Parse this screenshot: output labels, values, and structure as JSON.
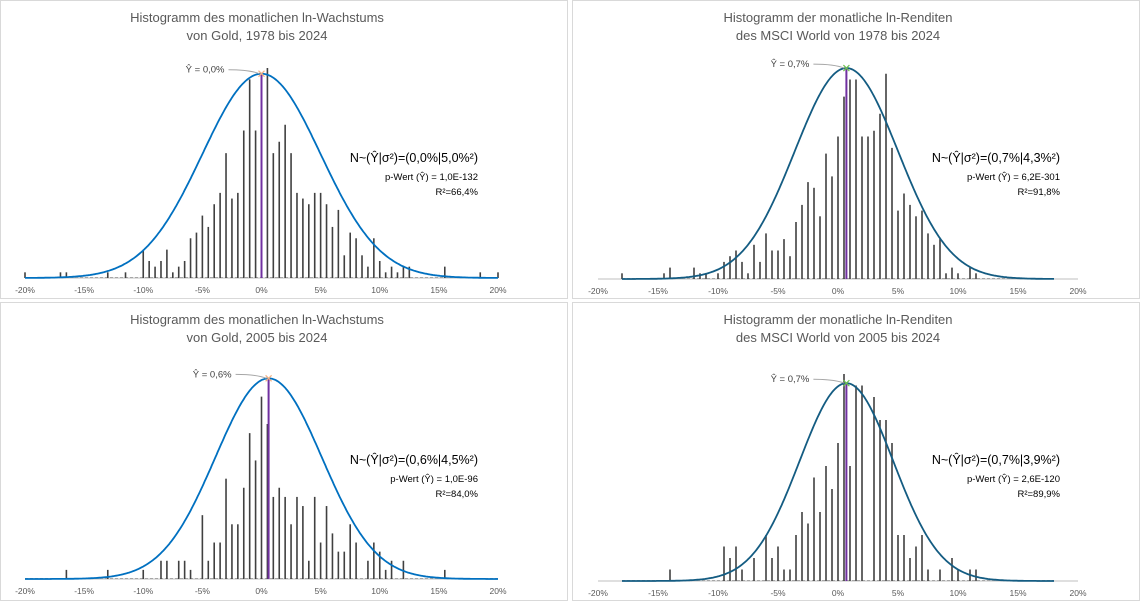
{
  "chart_data": [
    {
      "type": "bar",
      "title_lines": [
        "Histogramm des monatlichen ln-Wachstums",
        "von Gold, 1978 bis 2024"
      ],
      "mean_label": "Ŷ = 0,0%",
      "dist_label": "N~(Ŷ|σ²)=(0,0%|5,0%²)",
      "p_value_label": "p-Wert (Ŷ) = 1,0E-132",
      "r2_label": "R²=66,4%",
      "mu": 0.0,
      "sigma": 5.0,
      "fit_peak": 36,
      "curve_range": [
        -20,
        20
      ],
      "xlim": [
        -20,
        20
      ],
      "ylim": [
        0,
        40
      ],
      "xtick_labels": [
        "-20%",
        "-15%",
        "-10%",
        "-5%",
        "0%",
        "5%",
        "10%",
        "15%",
        "20%"
      ],
      "curve_color": "#0070C0",
      "mean_marker_color": "#F4B183",
      "x": [
        -20,
        -17,
        -16.5,
        -13,
        -11.5,
        -10,
        -9.5,
        -9,
        -8.5,
        -8,
        -7.5,
        -7,
        -6.5,
        -6,
        -5.5,
        -5,
        -4.5,
        -4,
        -3.5,
        -3,
        -2.5,
        -2,
        -1.5,
        -1,
        -0.5,
        0.5,
        1,
        1.5,
        2,
        2.5,
        3,
        3.5,
        4,
        4.5,
        5,
        5.5,
        6,
        6.5,
        7,
        7.5,
        8,
        8.5,
        9,
        9.5,
        10,
        10.5,
        11,
        11.5,
        12,
        12.5,
        15.5,
        18.5,
        20
      ],
      "counts": [
        1,
        1,
        1,
        1,
        1,
        5,
        3,
        2,
        3,
        5,
        1,
        2,
        3,
        7,
        8,
        11,
        9,
        13,
        15,
        22,
        14,
        15,
        26,
        35,
        26,
        37,
        22,
        24,
        27,
        22,
        15,
        14,
        13,
        15,
        15,
        13,
        9,
        12,
        4,
        8,
        7,
        4,
        2,
        7,
        3,
        1,
        2,
        1,
        2,
        2,
        2,
        1,
        1
      ]
    },
    {
      "type": "bar",
      "title_lines": [
        "Histogramm der monatliche ln-Renditen",
        "des MSCI World von 1978 bis 2024"
      ],
      "mean_label": "Ŷ = 0,7%",
      "dist_label": "N~(Ŷ|σ²)=(0,7%|4,3%²)",
      "p_value_label": "p-Wert (Ŷ) = 6,2E-301",
      "r2_label": "R²=91,8%",
      "mu": 0.7,
      "sigma": 4.3,
      "fit_peak": 37,
      "curve_range": [
        -18,
        18
      ],
      "xlim": [
        -20,
        20
      ],
      "ylim": [
        0,
        40
      ],
      "xtick_labels": [
        "-20%",
        "-15%",
        "-10%",
        "-5%",
        "0%",
        "5%",
        "10%",
        "15%",
        "20%"
      ],
      "curve_color": "#145C82",
      "mean_marker_color": "#70C050",
      "x": [
        -18,
        -14.5,
        -14,
        -12,
        -11.5,
        -11,
        -10,
        -9.5,
        -9,
        -8.5,
        -8,
        -7.5,
        -7,
        -6.5,
        -6,
        -5.5,
        -5,
        -4.5,
        -4,
        -3.5,
        -3,
        -2.5,
        -2,
        -1.5,
        -1,
        -0.5,
        0,
        0.5,
        1,
        1.5,
        2,
        2.5,
        3,
        3.5,
        4,
        4.5,
        5,
        5.5,
        6,
        6.5,
        7,
        7.5,
        8,
        8.5,
        9,
        9.5,
        10,
        11,
        11.5
      ],
      "counts": [
        1,
        1,
        2,
        2,
        1,
        1,
        1,
        3,
        4,
        5,
        3,
        1,
        6,
        3,
        8,
        5,
        5,
        7,
        4,
        10,
        13,
        17,
        16,
        11,
        22,
        18,
        25,
        32,
        35,
        35,
        25,
        25,
        26,
        29,
        36,
        23,
        12,
        15,
        13,
        11,
        12,
        8,
        6,
        7,
        1,
        2,
        1,
        2,
        1
      ]
    },
    {
      "type": "bar",
      "title_lines": [
        "Histogramm des monatlichen ln-Wachstums",
        "von Gold, 2005 bis 2024"
      ],
      "mean_label": "Ŷ = 0,6%",
      "dist_label": "N~(Ŷ|σ²)=(0,6%|4,5%²)",
      "p_value_label": "p-Wert (Ŷ) = 1,0E-96",
      "r2_label": "R²=84,0%",
      "mu": 0.6,
      "sigma": 4.5,
      "fit_peak": 22,
      "curve_range": [
        -20,
        20
      ],
      "xlim": [
        -20,
        20
      ],
      "ylim": [
        0,
        25
      ],
      "xtick_labels": [
        "-20%",
        "-15%",
        "-10%",
        "-5%",
        "0%",
        "5%",
        "10%",
        "15%",
        "20%"
      ],
      "curve_color": "#0070C0",
      "mean_marker_color": "#F4B183",
      "x": [
        -16.5,
        -13,
        -10,
        -8.5,
        -8,
        -7,
        -6.5,
        -6,
        -5,
        -4.5,
        -4,
        -3.5,
        -3,
        -2.5,
        -2,
        -1.5,
        -1,
        -0.5,
        0,
        0.5,
        1,
        1.5,
        2,
        2.5,
        3,
        3.5,
        4,
        4.5,
        5,
        5.5,
        6,
        6.5,
        7,
        7.5,
        8,
        9,
        9.5,
        10,
        10.5,
        11,
        12,
        15.5
      ],
      "counts": [
        1,
        1,
        1,
        2,
        2,
        2,
        2,
        1,
        7,
        2,
        4,
        4,
        11,
        6,
        6,
        10,
        16,
        13,
        20,
        17,
        9,
        10,
        9,
        6,
        9,
        8,
        2,
        9,
        4,
        8,
        5,
        3,
        3,
        6,
        4,
        2,
        4,
        3,
        1,
        2,
        2,
        1
      ]
    },
    {
      "type": "bar",
      "title_lines": [
        "Histogramm der monatliche ln-Renditen",
        "des MSCI World von 2005 bis 2024"
      ],
      "mean_label": "Ŷ = 0,7%",
      "dist_label": "N~(Ŷ|σ²)=(0,7%|3,9%²)",
      "p_value_label": "p-Wert (Ŷ) = 2,6E-120",
      "r2_label": "R²=89,9%",
      "mu": 0.7,
      "sigma": 3.9,
      "fit_peak": 17.2,
      "curve_range": [
        -18,
        18
      ],
      "xlim": [
        -20,
        20
      ],
      "ylim": [
        0,
        20
      ],
      "xtick_labels": [
        "-20%",
        "-15%",
        "-10%",
        "-5%",
        "0%",
        "5%",
        "10%",
        "15%",
        "20%"
      ],
      "curve_color": "#145C82",
      "mean_marker_color": "#70C050",
      "x": [
        -14,
        -9.5,
        -9,
        -8.5,
        -8,
        -7,
        -6,
        -5.5,
        -5,
        -4.5,
        -4,
        -3.5,
        -3,
        -2.5,
        -2,
        -1.5,
        -1,
        -0.5,
        0,
        0.5,
        1,
        1.5,
        2,
        3,
        3.5,
        4,
        4.5,
        5,
        5.5,
        6,
        6.5,
        7,
        7.5,
        8.5,
        9.5,
        10,
        11,
        11.5
      ],
      "counts": [
        1,
        3,
        2,
        3,
        1,
        2,
        4,
        2,
        3,
        1,
        1,
        4,
        6,
        5,
        9,
        6,
        10,
        8,
        12,
        18,
        10,
        17,
        17,
        16,
        14,
        14,
        12,
        4,
        4,
        2,
        3,
        4,
        1,
        1,
        2,
        1,
        1,
        1
      ]
    }
  ]
}
